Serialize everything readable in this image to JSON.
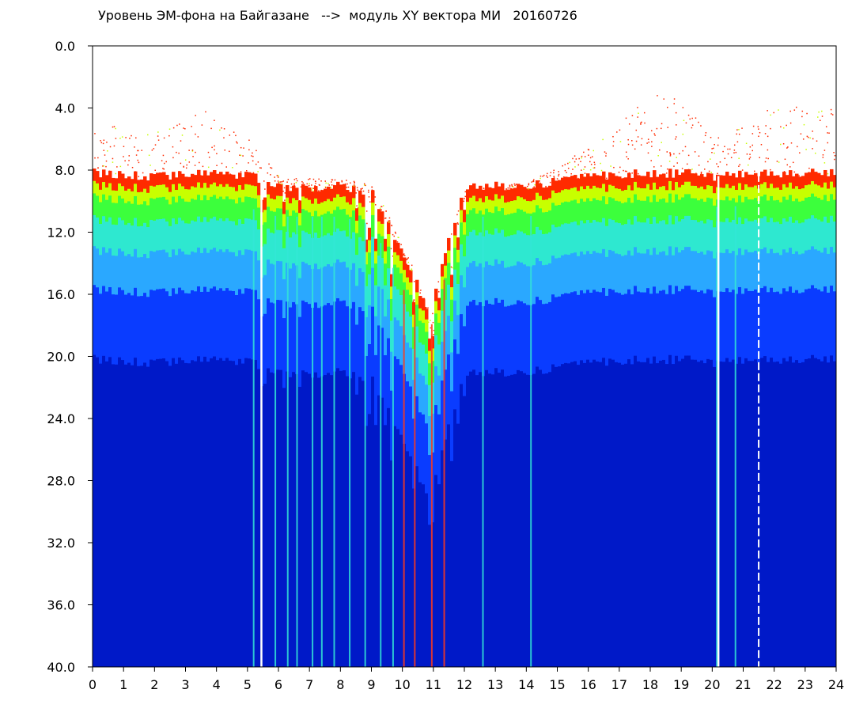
{
  "chart_data": {
    "type": "heatmap",
    "title": "Уровень ЭМ-фона на Байгазане   -->  модуль XY вектора МИ   20160726",
    "xlabel": "",
    "ylabel": "",
    "x_ticks": [
      "0",
      "1",
      "2",
      "3",
      "4",
      "5",
      "6",
      "7",
      "8",
      "9",
      "10",
      "11",
      "12",
      "13",
      "14",
      "15",
      "16",
      "17",
      "18",
      "19",
      "20",
      "21",
      "22",
      "23",
      "24"
    ],
    "y_ticks": [
      "0.0",
      "4.0",
      "8.0",
      "12.0",
      "16.0",
      "20.0",
      "24.0",
      "28.0",
      "32.0",
      "36.0",
      "40.0"
    ],
    "xlim": [
      0,
      24
    ],
    "ylim": [
      0,
      40
    ],
    "y_inverted": true,
    "grid": false,
    "colorscale": [
      "#0019c8",
      "#0a3cff",
      "#2aa8ff",
      "#2ee8d0",
      "#3cff3c",
      "#c8ff00",
      "#ff2a00"
    ],
    "hour_profiles": [
      {
        "x": 0,
        "noise_top": 8.2,
        "red_top": 5.0
      },
      {
        "x": 2,
        "noise_top": 8.4,
        "red_top": 5.5
      },
      {
        "x": 3.5,
        "noise_top": 8.2,
        "red_top": 4.0
      },
      {
        "x": 5,
        "noise_top": 8.4,
        "red_top": 6.0
      },
      {
        "x": 6,
        "noise_top": 9.0,
        "red_top": 8.5
      },
      {
        "x": 8,
        "noise_top": 9.0,
        "red_top": 8.5
      },
      {
        "x": 9,
        "noise_top": 9.5,
        "red_top": 9.0
      },
      {
        "x": 10,
        "noise_top": 13.5,
        "red_top": 13.0
      },
      {
        "x": 10.8,
        "noise_top": 17.0,
        "red_top": 17.0
      },
      {
        "x": 11.5,
        "noise_top": 12.0,
        "red_top": 12.0
      },
      {
        "x": 12,
        "noise_top": 9.0,
        "red_top": 9.0
      },
      {
        "x": 14,
        "noise_top": 9.0,
        "red_top": 8.8
      },
      {
        "x": 16,
        "noise_top": 8.4,
        "red_top": 6.5
      },
      {
        "x": 18,
        "noise_top": 8.2,
        "red_top": 3.0
      },
      {
        "x": 19,
        "noise_top": 8.2,
        "red_top": 3.5
      },
      {
        "x": 20,
        "noise_top": 8.4,
        "red_top": 6.0
      },
      {
        "x": 21,
        "noise_top": 8.3,
        "red_top": 5.0
      },
      {
        "x": 22,
        "noise_top": 8.2,
        "red_top": 3.8
      },
      {
        "x": 24,
        "noise_top": 8.2,
        "red_top": 4.0
      }
    ],
    "white_gaps_x": [
      5.45,
      20.2
    ],
    "dashed_line_x": 21.5
  }
}
